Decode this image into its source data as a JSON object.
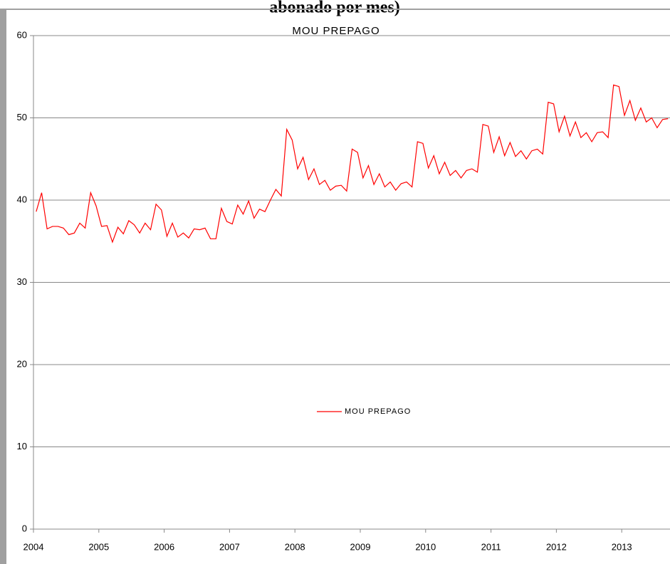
{
  "header": {
    "text": "abonado por mes)"
  },
  "chart_data": {
    "type": "line",
    "title": "MOU PREPAGO",
    "categories": [
      "2004",
      null,
      null,
      null,
      null,
      null,
      null,
      null,
      null,
      null,
      null,
      null,
      "2005",
      null,
      null,
      null,
      null,
      null,
      null,
      null,
      null,
      null,
      null,
      null,
      "2006",
      null,
      null,
      null,
      null,
      null,
      null,
      null,
      null,
      null,
      null,
      null,
      "2007",
      null,
      null,
      null,
      null,
      null,
      null,
      null,
      null,
      null,
      null,
      null,
      "2008",
      null,
      null,
      null,
      null,
      null,
      null,
      null,
      null,
      null,
      null,
      null,
      "2009",
      null,
      null,
      null,
      null,
      null,
      null,
      null,
      null,
      null,
      null,
      null,
      "2010",
      null,
      null,
      null,
      null,
      null,
      null,
      null,
      null,
      null,
      null,
      null,
      "2011",
      null,
      null,
      null,
      null,
      null,
      null,
      null,
      null,
      null,
      null,
      null,
      "2012",
      null,
      null,
      null,
      null,
      null,
      null,
      null,
      null,
      null,
      null,
      null,
      "2013",
      null,
      null,
      null,
      null,
      null,
      null,
      null,
      null
    ],
    "series": [
      {
        "name": "MOU PREPAGO",
        "color": "#ff0000",
        "values": [
          38.6,
          40.9,
          36.5,
          36.8,
          36.8,
          36.6,
          35.8,
          36.0,
          37.2,
          36.6,
          40.9,
          39.3,
          36.8,
          36.9,
          34.9,
          36.7,
          35.9,
          37.5,
          37.0,
          36.0,
          37.2,
          36.4,
          39.5,
          38.8,
          35.6,
          37.2,
          35.5,
          36.0,
          35.4,
          36.5,
          36.4,
          36.6,
          35.3,
          35.3,
          39.0,
          37.4,
          37.1,
          39.4,
          38.3,
          39.9,
          37.8,
          38.9,
          38.6,
          40.0,
          41.3,
          40.5,
          48.6,
          47.3,
          43.8,
          45.2,
          42.5,
          43.8,
          41.9,
          42.4,
          41.2,
          41.7,
          41.8,
          41.1,
          46.2,
          45.8,
          42.7,
          44.2,
          41.9,
          43.2,
          41.6,
          42.2,
          41.2,
          42.0,
          42.2,
          41.6,
          47.1,
          46.9,
          43.9,
          45.4,
          43.2,
          44.6,
          43.0,
          43.6,
          42.7,
          43.6,
          43.8,
          43.4,
          49.2,
          49.0,
          45.8,
          47.7,
          45.4,
          47.0,
          45.3,
          46.0,
          45.0,
          46.0,
          46.2,
          45.6,
          51.9,
          51.7,
          48.3,
          50.2,
          47.8,
          49.5,
          47.6,
          48.2,
          47.1,
          48.2,
          48.3,
          47.6,
          54.0,
          53.8,
          50.3,
          52.1,
          49.7,
          51.2,
          49.5,
          50.0,
          48.8,
          49.8,
          49.9
        ]
      }
    ],
    "ylim": [
      0,
      60
    ],
    "yticks": [
      0,
      10,
      20,
      30,
      40,
      50,
      60
    ],
    "grid": true,
    "legend": "center"
  }
}
